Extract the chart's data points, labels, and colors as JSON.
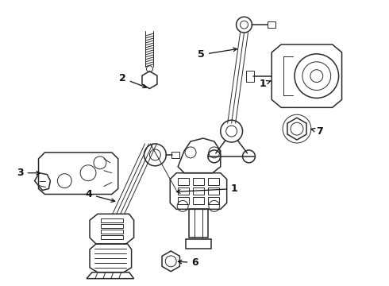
{
  "background_color": "#ffffff",
  "line_color": "#2a2a2a",
  "label_color": "#111111",
  "figsize": [
    4.9,
    3.6
  ],
  "dpi": 100
}
